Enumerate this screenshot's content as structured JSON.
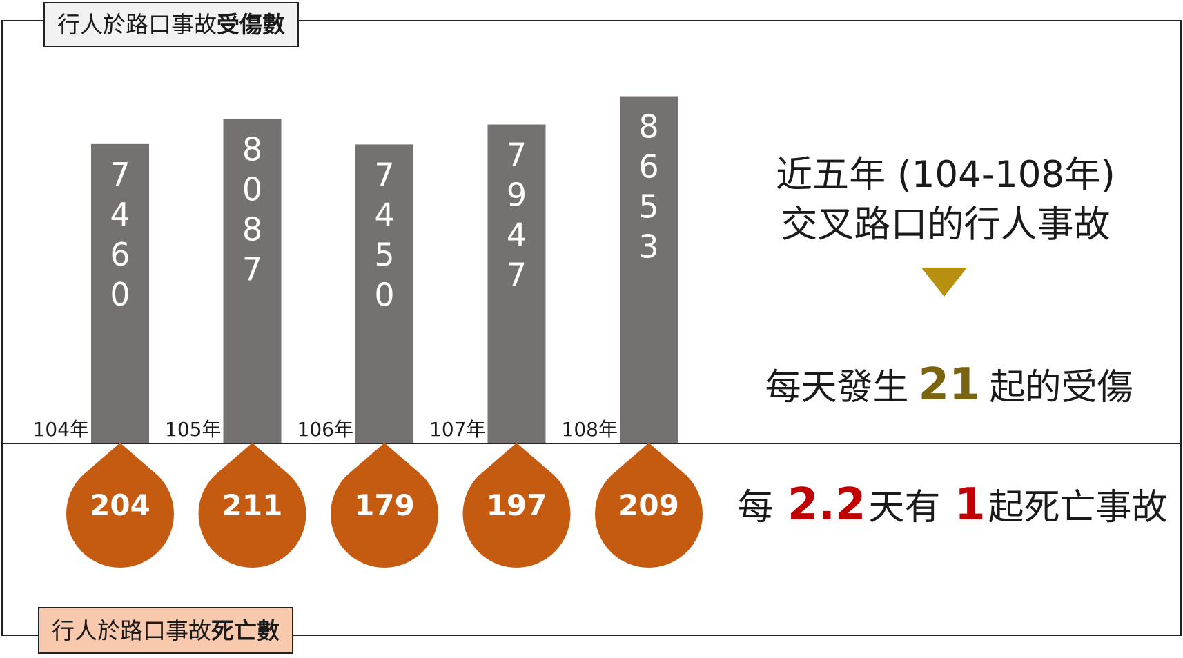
{
  "injury_title": {
    "prefix": "行人於路口事故",
    "bold": "受傷數"
  },
  "death_title": {
    "prefix": "行人於路口事故",
    "bold": "死亡數"
  },
  "headline": {
    "line1": "近五年 (104-108年)",
    "line2": "交叉路口的行人事故"
  },
  "injury_stat": {
    "prefix": "每天發生",
    "value": "21",
    "suffix": "起的受傷"
  },
  "death_stat": {
    "prefix": "每",
    "value": "2.2",
    "middle": "天有",
    "value2": "1",
    "suffix": "起死亡事故"
  },
  "colors": {
    "bar": "#767171",
    "drop": "#c55a11",
    "arrow": "#b8900f",
    "injury_num": "#7a6410",
    "death_num": "#c00000"
  },
  "chart_data": {
    "type": "bar",
    "categories": [
      "104年",
      "105年",
      "106年",
      "107年",
      "108年"
    ],
    "series": [
      {
        "name": "受傷數",
        "values": [
          7460,
          8087,
          7450,
          7947,
          8653
        ]
      },
      {
        "name": "死亡數",
        "values": [
          204,
          211,
          179,
          197,
          209
        ]
      }
    ],
    "ylim": [
      0,
      9300
    ],
    "grid": false,
    "legend": "none"
  }
}
